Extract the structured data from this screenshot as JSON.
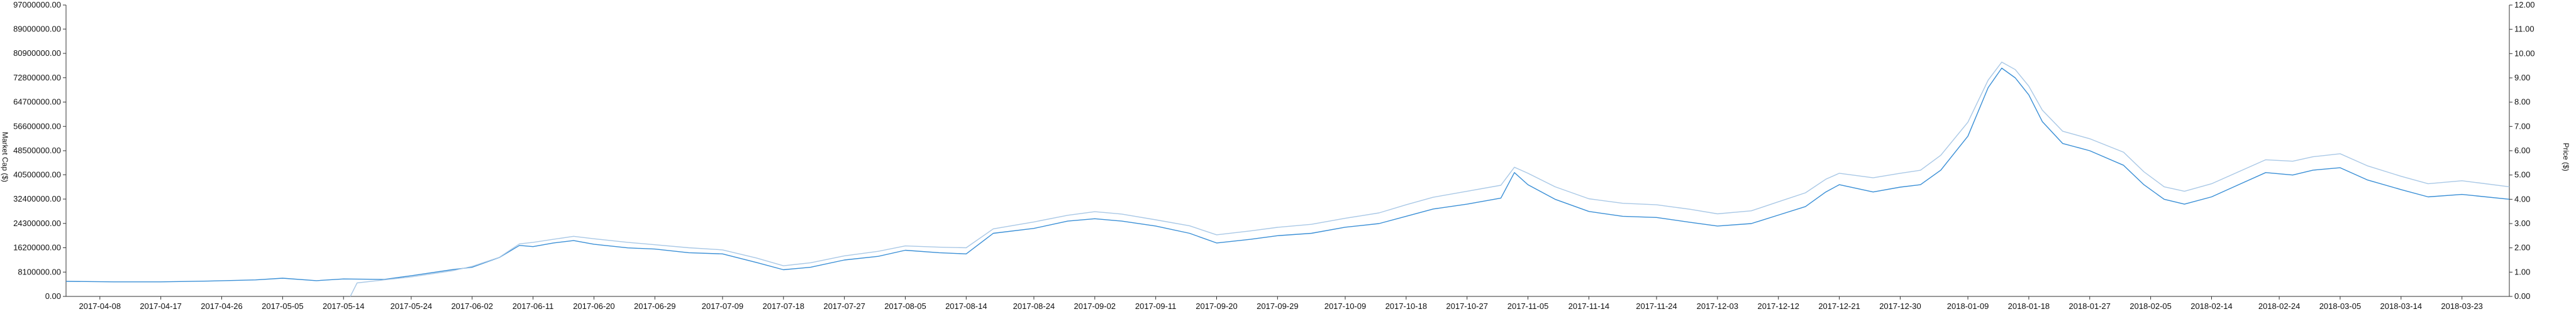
{
  "chart_data": {
    "type": "line",
    "title": "",
    "xlabel": "",
    "ylabel_left": "Market Cap ($)",
    "ylabel_right": "Price ($)",
    "grid": false,
    "legend": "none",
    "colors": {
      "price": "#3a8fd6",
      "market_cap": "#a9c8e6",
      "axis": "#333333"
    },
    "y_left": {
      "ylim": [
        0,
        97000000
      ],
      "ticks": [
        0,
        8100000,
        16200000,
        24300000,
        32400000,
        40500000,
        48500000,
        56600000,
        64700000,
        72800000,
        80900000,
        89000000,
        97000000
      ],
      "tick_labels": [
        "0.00",
        "8100000.00",
        "16200000.00",
        "24300000.00",
        "32400000.00",
        "40500000.00",
        "48500000.00",
        "56600000.00",
        "64700000.00",
        "72800000.00",
        "80900000.00",
        "89000000.00",
        "97000000.00"
      ]
    },
    "y_right": {
      "ylim": [
        0,
        12
      ],
      "ticks": [
        0,
        1,
        2,
        3,
        4,
        5,
        6,
        7,
        8,
        9,
        10,
        11,
        12
      ],
      "tick_labels": [
        "0.00",
        "1.00",
        "2.00",
        "3.00",
        "4.00",
        "5.00",
        "6.00",
        "7.00",
        "8.00",
        "9.00",
        "10.00",
        "11.00",
        "12.00"
      ]
    },
    "x": {
      "start": "2017-04-03",
      "end": "2018-03-30",
      "tick_labels": [
        "2017-04-08",
        "2017-04-17",
        "2017-04-26",
        "2017-05-05",
        "2017-05-14",
        "2017-05-24",
        "2017-06-02",
        "2017-06-11",
        "2017-06-20",
        "2017-06-29",
        "2017-07-09",
        "2017-07-18",
        "2017-07-27",
        "2017-08-05",
        "2017-08-14",
        "2017-08-24",
        "2017-09-02",
        "2017-09-11",
        "2017-09-20",
        "2017-09-29",
        "2017-10-09",
        "2017-10-18",
        "2017-10-27",
        "2017-11-05",
        "2017-11-14",
        "2017-11-24",
        "2017-12-03",
        "2017-12-12",
        "2017-12-21",
        "2017-12-30",
        "2018-01-09",
        "2018-01-18",
        "2018-01-27",
        "2018-02-05",
        "2018-02-14",
        "2018-02-24",
        "2018-03-05",
        "2018-03-14",
        "2018-03-23"
      ]
    },
    "series": [
      {
        "name": "Price",
        "axis": "right",
        "points": [
          [
            "2017-04-03",
            0.62
          ],
          [
            "2017-04-10",
            0.6
          ],
          [
            "2017-04-17",
            0.6
          ],
          [
            "2017-04-24",
            0.63
          ],
          [
            "2017-05-01",
            0.68
          ],
          [
            "2017-05-05",
            0.75
          ],
          [
            "2017-05-10",
            0.65
          ],
          [
            "2017-05-14",
            0.72
          ],
          [
            "2017-05-20",
            0.7
          ],
          [
            "2017-05-24",
            0.85
          ],
          [
            "2017-05-30",
            1.1
          ],
          [
            "2017-06-02",
            1.2
          ],
          [
            "2017-06-06",
            1.6
          ],
          [
            "2017-06-09",
            2.1
          ],
          [
            "2017-06-11",
            2.05
          ],
          [
            "2017-06-14",
            2.2
          ],
          [
            "2017-06-17",
            2.3
          ],
          [
            "2017-06-20",
            2.15
          ],
          [
            "2017-06-25",
            2.0
          ],
          [
            "2017-06-29",
            1.95
          ],
          [
            "2017-07-04",
            1.8
          ],
          [
            "2017-07-09",
            1.75
          ],
          [
            "2017-07-14",
            1.4
          ],
          [
            "2017-07-18",
            1.1
          ],
          [
            "2017-07-22",
            1.2
          ],
          [
            "2017-07-27",
            1.5
          ],
          [
            "2017-08-01",
            1.65
          ],
          [
            "2017-08-05",
            1.9
          ],
          [
            "2017-08-10",
            1.8
          ],
          [
            "2017-08-14",
            1.75
          ],
          [
            "2017-08-18",
            2.6
          ],
          [
            "2017-08-24",
            2.8
          ],
          [
            "2017-08-29",
            3.1
          ],
          [
            "2017-09-02",
            3.2
          ],
          [
            "2017-09-06",
            3.1
          ],
          [
            "2017-09-11",
            2.9
          ],
          [
            "2017-09-16",
            2.6
          ],
          [
            "2017-09-20",
            2.2
          ],
          [
            "2017-09-25",
            2.35
          ],
          [
            "2017-09-29",
            2.5
          ],
          [
            "2017-10-04",
            2.6
          ],
          [
            "2017-10-09",
            2.85
          ],
          [
            "2017-10-14",
            3.0
          ],
          [
            "2017-10-18",
            3.3
          ],
          [
            "2017-10-22",
            3.6
          ],
          [
            "2017-10-27",
            3.8
          ],
          [
            "2017-11-01",
            4.05
          ],
          [
            "2017-11-03",
            5.1
          ],
          [
            "2017-11-05",
            4.6
          ],
          [
            "2017-11-09",
            4.0
          ],
          [
            "2017-11-14",
            3.5
          ],
          [
            "2017-11-19",
            3.3
          ],
          [
            "2017-11-24",
            3.25
          ],
          [
            "2017-11-29",
            3.05
          ],
          [
            "2017-12-03",
            2.9
          ],
          [
            "2017-12-08",
            3.0
          ],
          [
            "2017-12-12",
            3.35
          ],
          [
            "2017-12-16",
            3.7
          ],
          [
            "2017-12-19",
            4.3
          ],
          [
            "2017-12-21",
            4.6
          ],
          [
            "2017-12-26",
            4.3
          ],
          [
            "2017-12-30",
            4.5
          ],
          [
            "2018-01-02",
            4.6
          ],
          [
            "2018-01-05",
            5.2
          ],
          [
            "2018-01-09",
            6.6
          ],
          [
            "2018-01-12",
            8.6
          ],
          [
            "2018-01-14",
            9.4
          ],
          [
            "2018-01-16",
            9.0
          ],
          [
            "2018-01-18",
            8.3
          ],
          [
            "2018-01-20",
            7.2
          ],
          [
            "2018-01-23",
            6.3
          ],
          [
            "2018-01-27",
            6.0
          ],
          [
            "2018-02-01",
            5.4
          ],
          [
            "2018-02-04",
            4.6
          ],
          [
            "2018-02-07",
            4.0
          ],
          [
            "2018-02-10",
            3.8
          ],
          [
            "2018-02-14",
            4.1
          ],
          [
            "2018-02-18",
            4.6
          ],
          [
            "2018-02-22",
            5.1
          ],
          [
            "2018-02-26",
            5.0
          ],
          [
            "2018-03-01",
            5.2
          ],
          [
            "2018-03-05",
            5.3
          ],
          [
            "2018-03-09",
            4.8
          ],
          [
            "2018-03-14",
            4.4
          ],
          [
            "2018-03-18",
            4.1
          ],
          [
            "2018-03-23",
            4.2
          ],
          [
            "2018-03-30",
            4.0
          ]
        ]
      },
      {
        "name": "Market Cap",
        "axis": "left",
        "points": [
          [
            "2017-05-15",
            0
          ],
          [
            "2017-05-16",
            4500000
          ],
          [
            "2017-05-20",
            5500000
          ],
          [
            "2017-05-24",
            6500000
          ],
          [
            "2017-05-30",
            8500000
          ],
          [
            "2017-06-02",
            10000000
          ],
          [
            "2017-06-06",
            13000000
          ],
          [
            "2017-06-09",
            17500000
          ],
          [
            "2017-06-11",
            18000000
          ],
          [
            "2017-06-14",
            19000000
          ],
          [
            "2017-06-17",
            20000000
          ],
          [
            "2017-06-20",
            19200000
          ],
          [
            "2017-06-25",
            18000000
          ],
          [
            "2017-06-29",
            17200000
          ],
          [
            "2017-07-04",
            16200000
          ],
          [
            "2017-07-09",
            15500000
          ],
          [
            "2017-07-14",
            12800000
          ],
          [
            "2017-07-18",
            10200000
          ],
          [
            "2017-07-22",
            11200000
          ],
          [
            "2017-07-27",
            13500000
          ],
          [
            "2017-08-01",
            15000000
          ],
          [
            "2017-08-05",
            16800000
          ],
          [
            "2017-08-10",
            16400000
          ],
          [
            "2017-08-14",
            16200000
          ],
          [
            "2017-08-18",
            22500000
          ],
          [
            "2017-08-24",
            24800000
          ],
          [
            "2017-08-29",
            27000000
          ],
          [
            "2017-09-02",
            28200000
          ],
          [
            "2017-09-06",
            27400000
          ],
          [
            "2017-09-11",
            25500000
          ],
          [
            "2017-09-16",
            23500000
          ],
          [
            "2017-09-20",
            20500000
          ],
          [
            "2017-09-25",
            21800000
          ],
          [
            "2017-09-29",
            23000000
          ],
          [
            "2017-10-04",
            24000000
          ],
          [
            "2017-10-09",
            26000000
          ],
          [
            "2017-10-14",
            27800000
          ],
          [
            "2017-10-18",
            30500000
          ],
          [
            "2017-10-22",
            33000000
          ],
          [
            "2017-10-27",
            35000000
          ],
          [
            "2017-11-01",
            37000000
          ],
          [
            "2017-11-03",
            43000000
          ],
          [
            "2017-11-05",
            41000000
          ],
          [
            "2017-11-09",
            36500000
          ],
          [
            "2017-11-14",
            32500000
          ],
          [
            "2017-11-19",
            31000000
          ],
          [
            "2017-11-24",
            30500000
          ],
          [
            "2017-11-29",
            29000000
          ],
          [
            "2017-12-03",
            27500000
          ],
          [
            "2017-12-08",
            28500000
          ],
          [
            "2017-12-12",
            31500000
          ],
          [
            "2017-12-16",
            34500000
          ],
          [
            "2017-12-19",
            39000000
          ],
          [
            "2017-12-21",
            41000000
          ],
          [
            "2017-12-26",
            39500000
          ],
          [
            "2017-12-30",
            41000000
          ],
          [
            "2018-01-02",
            42000000
          ],
          [
            "2018-01-05",
            47000000
          ],
          [
            "2018-01-09",
            58000000
          ],
          [
            "2018-01-12",
            72000000
          ],
          [
            "2018-01-14",
            78000000
          ],
          [
            "2018-01-16",
            75500000
          ],
          [
            "2018-01-18",
            70000000
          ],
          [
            "2018-01-20",
            62000000
          ],
          [
            "2018-01-23",
            55000000
          ],
          [
            "2018-01-27",
            52500000
          ],
          [
            "2018-02-01",
            48000000
          ],
          [
            "2018-02-04",
            41500000
          ],
          [
            "2018-02-07",
            36500000
          ],
          [
            "2018-02-10",
            35000000
          ],
          [
            "2018-02-14",
            37500000
          ],
          [
            "2018-02-18",
            41500000
          ],
          [
            "2018-02-22",
            45500000
          ],
          [
            "2018-02-26",
            45000000
          ],
          [
            "2018-03-01",
            46500000
          ],
          [
            "2018-03-05",
            47500000
          ],
          [
            "2018-03-09",
            43500000
          ],
          [
            "2018-03-14",
            40000000
          ],
          [
            "2018-03-18",
            37500000
          ],
          [
            "2018-03-23",
            38500000
          ],
          [
            "2018-03-30",
            36500000
          ]
        ]
      }
    ]
  }
}
